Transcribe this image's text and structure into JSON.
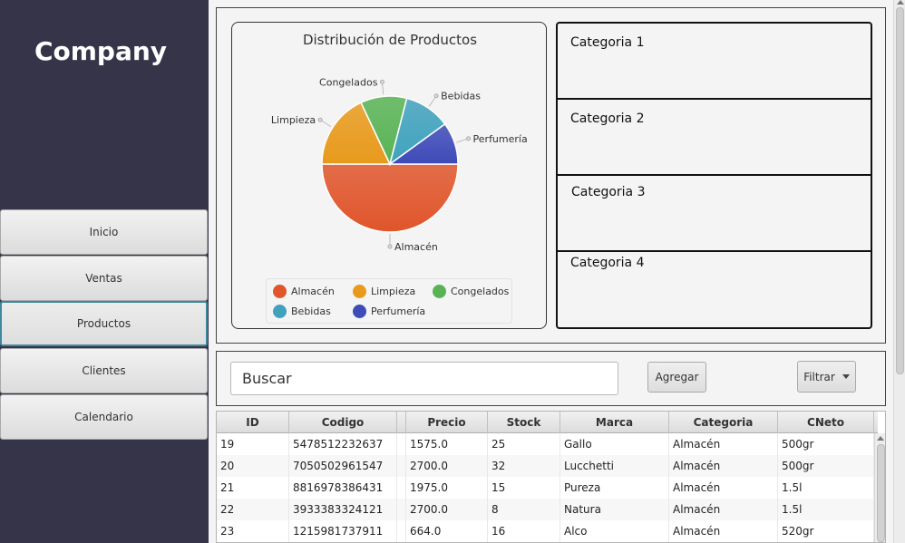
{
  "sidebar": {
    "brand": "Company",
    "items": [
      {
        "label": "Inicio"
      },
      {
        "label": "Ventas"
      },
      {
        "label": "Productos"
      },
      {
        "label": "Clientes"
      },
      {
        "label": "Calendario"
      }
    ],
    "active_index": 2
  },
  "chart_data": {
    "type": "pie",
    "title": "Distribución de Productos",
    "categories": [
      "Almacén",
      "Limpieza",
      "Congelados",
      "Bebidas",
      "Perfumería"
    ],
    "values": [
      50,
      18,
      11,
      11,
      10
    ],
    "colors": [
      "#e0552b",
      "#e89a1c",
      "#59b355",
      "#40a2bd",
      "#3e4bb8"
    ],
    "legend_position": "bottom"
  },
  "categories_panel": {
    "items": [
      "Categoria 1",
      "Categoria 2",
      "Categoria 3",
      "Categoria 4"
    ]
  },
  "search": {
    "placeholder": "Buscar",
    "add_label": "Agregar",
    "filter_label": "Filtrar"
  },
  "table": {
    "columns": [
      "ID",
      "Codigo",
      "",
      "Precio",
      "Stock",
      "Marca",
      "Categoria",
      "CNeto"
    ],
    "rows": [
      [
        "19",
        "5478512232637",
        "",
        "1575.0",
        "25",
        "Gallo",
        "Almacén",
        "500gr"
      ],
      [
        "20",
        "7050502961547",
        "",
        "2700.0",
        "32",
        "Lucchetti",
        "Almacén",
        "500gr"
      ],
      [
        "21",
        "8816978386431",
        "",
        "1975.0",
        "15",
        "Pureza",
        "Almacén",
        "1.5l"
      ],
      [
        "22",
        "3933383324121",
        "",
        "2700.0",
        "8",
        "Natura",
        "Almacén",
        "1.5l"
      ],
      [
        "23",
        "1215981737911",
        "",
        "664.0",
        "16",
        "Alco",
        "Almacén",
        "520gr"
      ]
    ]
  }
}
